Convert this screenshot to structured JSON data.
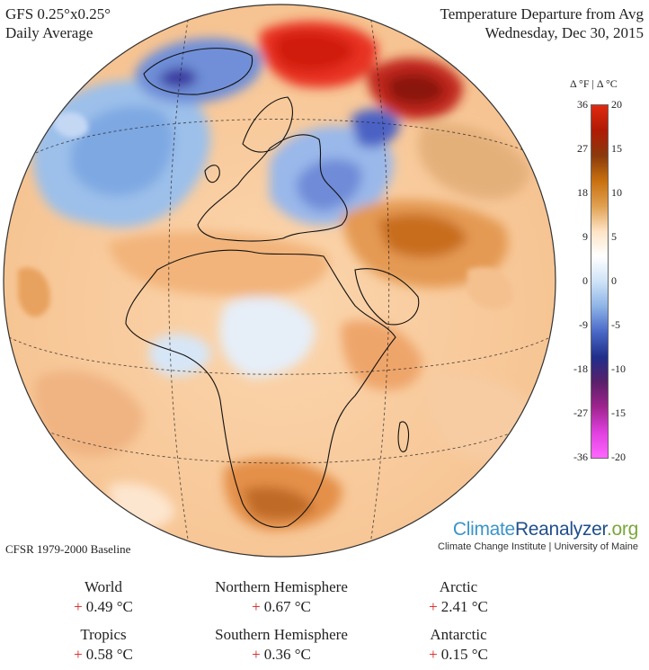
{
  "header": {
    "model": "GFS 0.25°x0.25°",
    "period": "Daily Average",
    "title": "Temperature Departure from Avg",
    "date": "Wednesday, Dec 30, 2015"
  },
  "legend": {
    "header": "Δ °F  |  Δ °C",
    "fahrenheit_ticks": [
      "36",
      "27",
      "18",
      "9",
      "0",
      "-9",
      "-18",
      "-27",
      "-36"
    ],
    "celsius_ticks": [
      "20",
      "15",
      "10",
      "5",
      "0",
      "-5",
      "-10",
      "-15",
      "-20"
    ],
    "colors": [
      "#e02a10",
      "#b01a05",
      "#8a3a0c",
      "#c8700e",
      "#e0a050",
      "#fde3c4",
      "#ffffff",
      "#cfe3f7",
      "#8db3e6",
      "#4a68c8",
      "#1f2f8a",
      "#5a1f6a",
      "#a0248f",
      "#e040e0",
      "#ff66ff"
    ]
  },
  "baseline": "CFSR 1979-2000 Baseline",
  "branding": {
    "logo_part1": "Climate",
    "logo_part2": "Reanalyzer",
    "logo_part3": ".org",
    "subtitle": "Climate Change Institute | University of Maine"
  },
  "stats": [
    {
      "label": "World",
      "sign": "+",
      "value": "0.49 °C"
    },
    {
      "label": "Northern Hemisphere",
      "sign": "+",
      "value": "0.67 °C"
    },
    {
      "label": "Arctic",
      "sign": "+",
      "value": "2.41 °C"
    },
    {
      "label": "Tropics",
      "sign": "+",
      "value": "0.58 °C"
    },
    {
      "label": "Southern Hemisphere",
      "sign": "+",
      "value": "0.36 °C"
    },
    {
      "label": "Antarctic",
      "sign": "+",
      "value": "0.15 °C"
    }
  ]
}
